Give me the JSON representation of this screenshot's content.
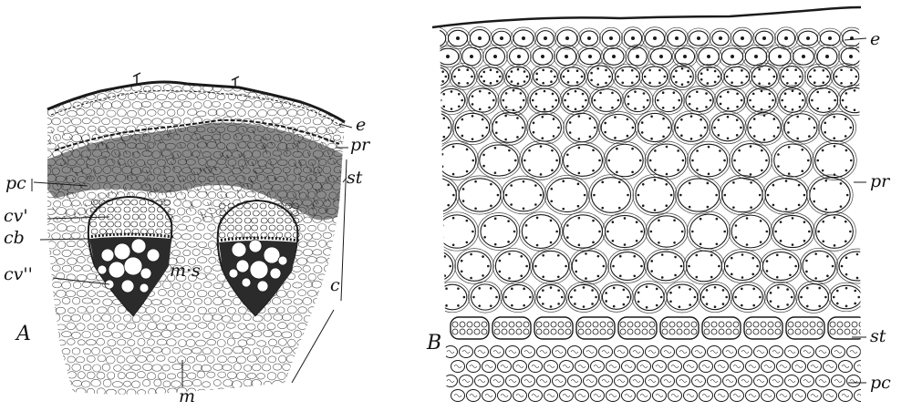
{
  "figure": {
    "panel_a": {
      "letter": "A",
      "labels": {
        "e": "e",
        "pr": "pr",
        "st": "st",
        "pc": "pc",
        "cv1": "cv'",
        "cb": "cb",
        "cv2": "cv''",
        "ms": "m·s",
        "c": "c",
        "m": "m"
      }
    },
    "panel_b": {
      "letter": "B",
      "labels": {
        "e": "e",
        "pr": "pr",
        "st": "st",
        "pc": "pc"
      }
    }
  },
  "colors": {
    "ink": "#1a1a1a",
    "paper": "#ffffff"
  }
}
